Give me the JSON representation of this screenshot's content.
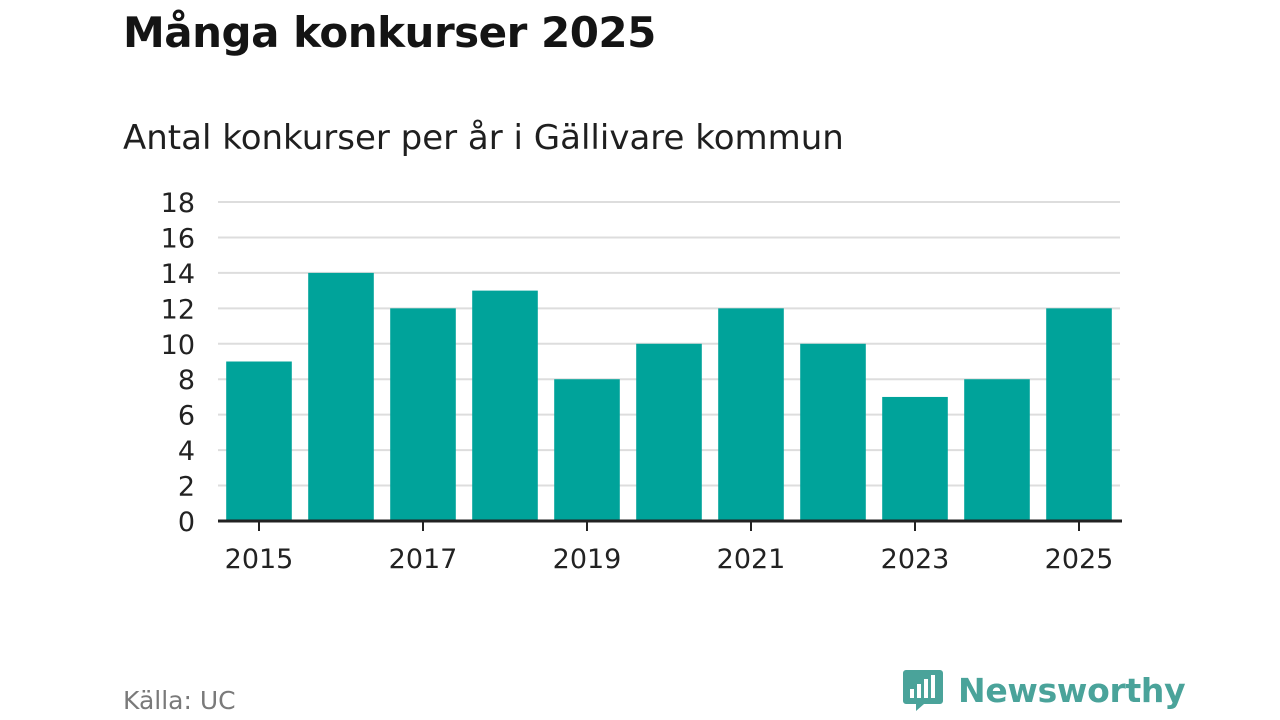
{
  "title": "Många konkurser 2025",
  "subtitle": "Antal konkurser per år i Gällivare kommun",
  "source": "Källa: UC",
  "brand": {
    "name": "Newsworthy",
    "icon": "bar-chart-icon",
    "color": "#4aa39a"
  },
  "colors": {
    "bar": "#00a39a",
    "grid": "#dddddd",
    "axis": "#222222"
  },
  "chart_data": {
    "type": "bar",
    "title": "Många konkurser 2025",
    "subtitle": "Antal konkurser per år i Gällivare kommun",
    "categories": [
      "2015",
      "2016",
      "2017",
      "2018",
      "2019",
      "2020",
      "2021",
      "2022",
      "2023",
      "2024",
      "2025"
    ],
    "values": [
      9,
      14,
      12,
      13,
      8,
      10,
      12,
      10,
      7,
      8,
      12
    ],
    "x_tick_labels": [
      "2015",
      "2017",
      "2019",
      "2021",
      "2023",
      "2025"
    ],
    "y_ticks": [
      0,
      2,
      4,
      6,
      8,
      10,
      12,
      14,
      16,
      18
    ],
    "ylim": [
      0,
      18
    ],
    "grid": true,
    "legend": "none"
  }
}
